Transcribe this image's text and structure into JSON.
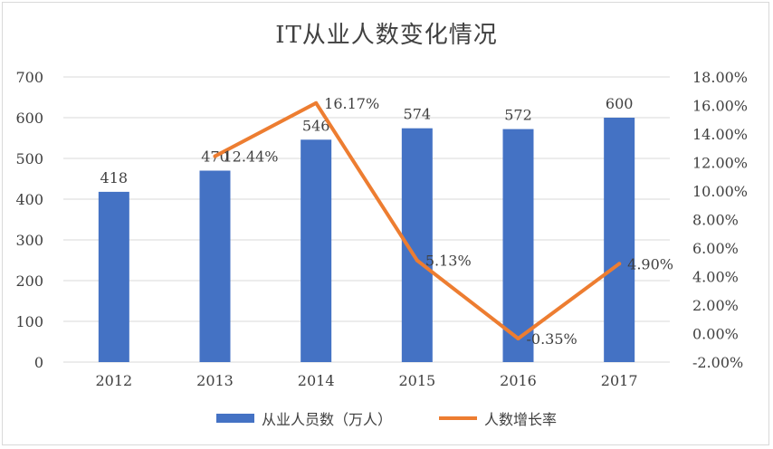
{
  "colors": {
    "bar": "#4472c4",
    "line": "#ed7d31",
    "axis_text": "#404040",
    "grid": "#d9d9d9"
  },
  "chart_data": {
    "type": "bar",
    "title": "IT从业人数变化情况",
    "categories": [
      "2012",
      "2013",
      "2014",
      "2015",
      "2016",
      "2017"
    ],
    "series": [
      {
        "name": "从业人员数（万人）",
        "type": "bar",
        "axis": "left",
        "values": [
          418,
          470,
          546,
          574,
          572,
          600
        ],
        "labels": [
          "418",
          "470",
          "546",
          "574",
          "572",
          "600"
        ]
      },
      {
        "name": "人数增长率",
        "type": "line",
        "axis": "right",
        "values": [
          null,
          12.44,
          16.17,
          5.13,
          -0.35,
          4.9
        ],
        "labels": [
          "",
          "12.44%",
          "16.17%",
          "5.13%",
          "-0.35%",
          "4.90%"
        ]
      }
    ],
    "y_left": {
      "min": 0,
      "max": 700,
      "ticks": [
        "0",
        "100",
        "200",
        "300",
        "400",
        "500",
        "600",
        "700"
      ]
    },
    "y_right": {
      "min": -2,
      "max": 18,
      "ticks": [
        "-2.00%",
        "0.00%",
        "2.00%",
        "4.00%",
        "6.00%",
        "8.00%",
        "10.00%",
        "12.00%",
        "14.00%",
        "16.00%",
        "18.00%"
      ]
    },
    "grid": true,
    "legend": "bottom"
  }
}
